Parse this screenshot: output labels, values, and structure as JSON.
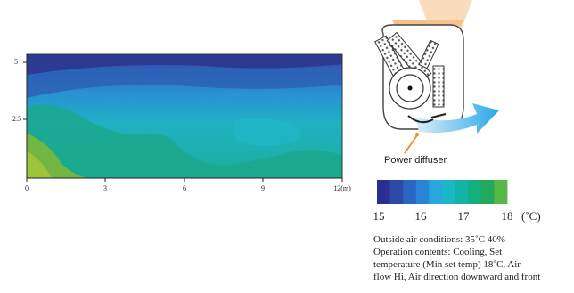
{
  "heatmap": {
    "x_ticks": [
      "0",
      "3",
      "6",
      "9",
      "12(m)"
    ],
    "y_ticks": [
      "5",
      "2.5"
    ]
  },
  "unit_diagram": {
    "callout_label": "Power diffuser"
  },
  "scale": {
    "labels": [
      "15",
      "16",
      "17",
      "18"
    ],
    "unit": "(˚C)",
    "colors": [
      "#2b2f8f",
      "#2f4aa6",
      "#2c66c0",
      "#2a84d6",
      "#27a6e0",
      "#1fb5c8",
      "#15b3a4",
      "#16ad7d",
      "#22a95a",
      "#56b848"
    ]
  },
  "caption": {
    "lines": [
      "Outside air conditions: 35˚C 40%",
      "Operation contents: Cooling, Set",
      "temperature (Min set temp) 18˚C, Air",
      "flow Hi, Air direction downward and front"
    ]
  }
}
